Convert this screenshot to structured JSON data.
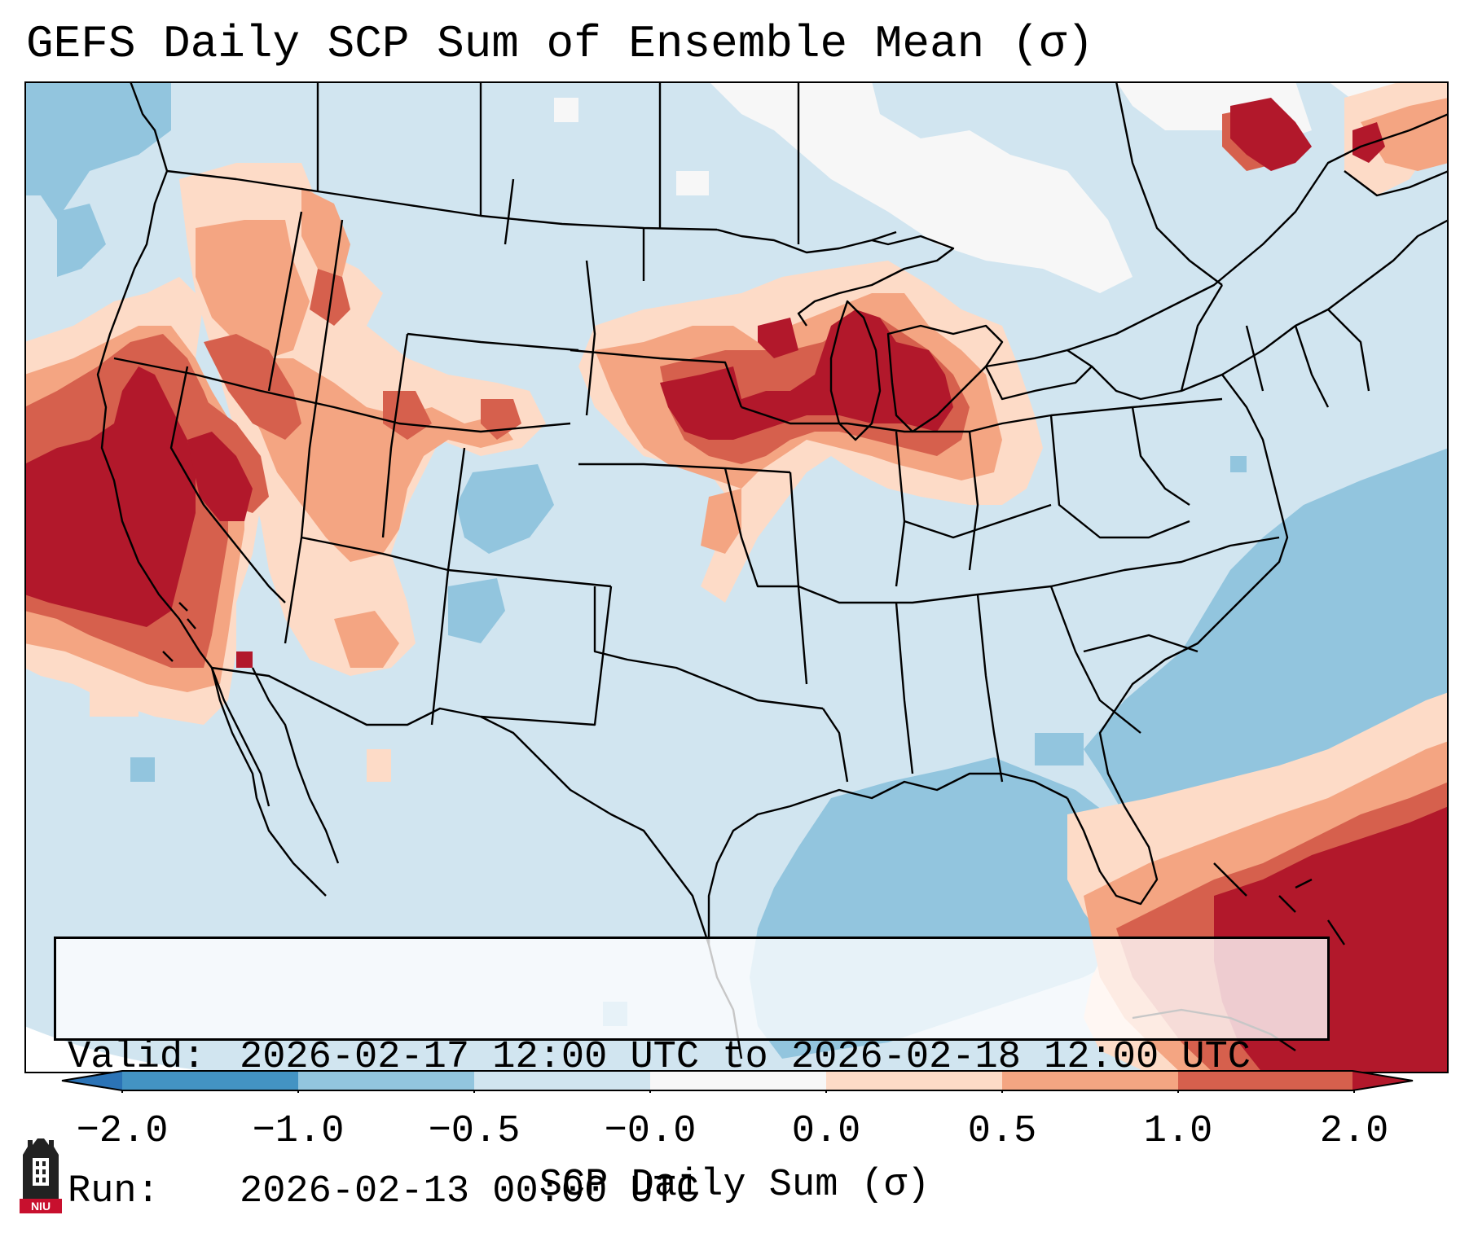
{
  "title": "GEFS Daily SCP Sum of Ensemble Mean (σ)",
  "info": {
    "valid_label": "Valid:",
    "valid_value": "2026-02-17 12:00 UTC to 2026-02-18 12:00 UTC",
    "run_label": "Run:",
    "run_value": "2026-02-13 00:00 UTC"
  },
  "colorbar": {
    "label": "SCP Daily Sum (σ)",
    "ticks": [
      "−2.0",
      "−1.0",
      "−0.5",
      "−0.0",
      "0.0",
      "0.5",
      "1.0",
      "2.0"
    ],
    "bins": [
      {
        "range": "< -2.0",
        "color": "#2b73b6"
      },
      {
        "range": "-2.0 to -1.0",
        "color": "#4393c3"
      },
      {
        "range": "-1.0 to -0.5",
        "color": "#92c5de"
      },
      {
        "range": "-0.5 to -0.0",
        "color": "#d1e5f0"
      },
      {
        "range": "-0.0 to 0.0",
        "color": "#f7f7f7"
      },
      {
        "range": "0.0 to 0.5",
        "color": "#fddbc7"
      },
      {
        "range": "0.5 to 1.0",
        "color": "#f4a582"
      },
      {
        "range": "1.0 to 2.0",
        "color": "#d6604d"
      },
      {
        "range": "> 2.0",
        "color": "#b2182b"
      }
    ]
  },
  "map": {
    "projection": "Lambert Conformal (CONUS)",
    "background_color": "#d1e5f0",
    "anomaly_regions": [
      {
        "name": "us-west-coast-california",
        "level": "> 2.0"
      },
      {
        "name": "great-basin-nevada",
        "level": "0.5 to 2.0"
      },
      {
        "name": "idaho-utah-colorado",
        "level": "0.0 to 1.0"
      },
      {
        "name": "nebraska-iowa",
        "level": "1.0 to > 2.0"
      },
      {
        "name": "wisconsin-northern-illinois",
        "level": "> 2.0"
      },
      {
        "name": "minnesota-dakotas",
        "level": "0.0 to 2.0"
      },
      {
        "name": "quebec-maritimes",
        "level": "> 2.0"
      },
      {
        "name": "caribbean-atlantic",
        "level": "1.0 to > 2.0"
      },
      {
        "name": "pacific-offshore-baja",
        "level": "0.0 to 1.0"
      },
      {
        "name": "gulf-of-mexico",
        "level": "-1.0 to -0.5"
      },
      {
        "name": "western-atlantic",
        "level": "-1.0 to -0.5"
      },
      {
        "name": "great-lakes-ontario",
        "level": "-0.0 to 0.0"
      }
    ]
  },
  "logo": {
    "text": "NIU"
  }
}
